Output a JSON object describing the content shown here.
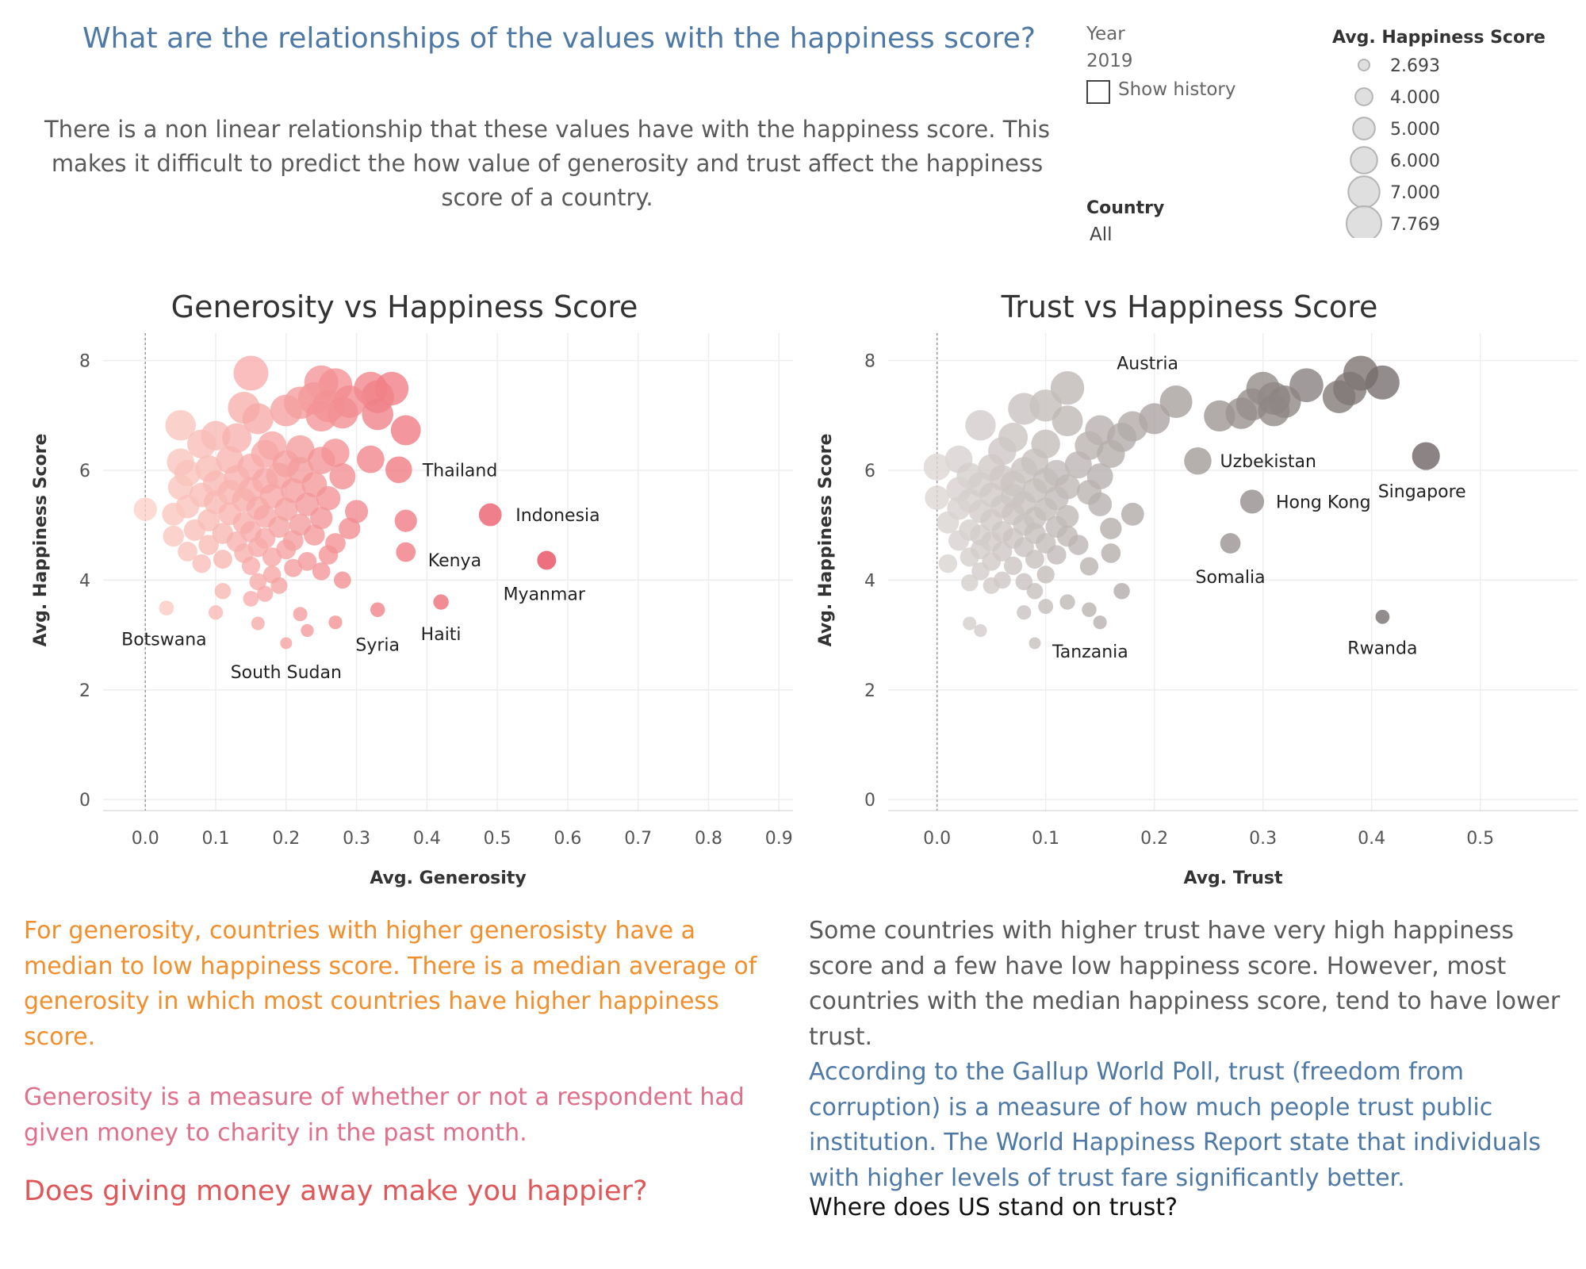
{
  "header": {
    "title": "What are the relationships of the values with the happiness score?",
    "subtitle": "There is a non linear relationship that these values have with the happiness score. This makes it difficult to predict the how value of generosity and trust affect the happiness score of a country."
  },
  "controls": {
    "year_label": "Year",
    "year_value": "2019",
    "show_history_label": "Show history",
    "show_history_checked": false,
    "country_label": "Country",
    "country_value": "All"
  },
  "size_legend": {
    "title": "Avg. Happiness Score",
    "items": [
      "2.693",
      "4.000",
      "5.000",
      "6.000",
      "7.000",
      "7.769"
    ]
  },
  "chart_data": [
    {
      "type": "scatter",
      "title": "Generosity vs Happiness Score",
      "xlabel": "Avg. Generosity",
      "ylabel": "Avg. Happiness Score",
      "xlim": [
        -0.06,
        0.92
      ],
      "ylim": [
        -0.2,
        8.5
      ],
      "xticks": [
        "0.0",
        "0.1",
        "0.2",
        "0.3",
        "0.4",
        "0.5",
        "0.6",
        "0.7",
        "0.8",
        "0.9"
      ],
      "yticks": [
        "0",
        "2",
        "4",
        "6",
        "8"
      ],
      "color_low": "#fcd0c6",
      "color_high": "#e8485b",
      "labeled_points": [
        {
          "label": "Thailand",
          "x": 0.36,
          "y": 6.01
        },
        {
          "label": "Indonesia",
          "x": 0.49,
          "y": 5.19
        },
        {
          "label": "Kenya",
          "x": 0.37,
          "y": 4.51
        },
        {
          "label": "Myanmar",
          "x": 0.57,
          "y": 4.36
        },
        {
          "label": "Haiti",
          "x": 0.42,
          "y": 3.6
        },
        {
          "label": "Syria",
          "x": 0.33,
          "y": 3.46
        },
        {
          "label": "Botswana",
          "x": 0.03,
          "y": 3.49
        },
        {
          "label": "South Sudan",
          "x": 0.2,
          "y": 2.85
        }
      ],
      "points": [
        [
          0.0,
          5.29
        ],
        [
          0.15,
          7.77
        ],
        [
          0.25,
          7.6
        ],
        [
          0.27,
          7.55
        ],
        [
          0.32,
          7.49
        ],
        [
          0.35,
          7.49
        ],
        [
          0.33,
          7.34
        ],
        [
          0.24,
          7.31
        ],
        [
          0.22,
          7.23
        ],
        [
          0.29,
          7.25
        ],
        [
          0.26,
          7.17
        ],
        [
          0.14,
          7.14
        ],
        [
          0.2,
          7.09
        ],
        [
          0.28,
          7.05
        ],
        [
          0.25,
          6.99
        ],
        [
          0.16,
          6.94
        ],
        [
          0.33,
          7.02
        ],
        [
          0.37,
          6.73
        ],
        [
          0.05,
          6.82
        ],
        [
          0.1,
          6.63
        ],
        [
          0.13,
          6.59
        ],
        [
          0.08,
          6.48
        ],
        [
          0.18,
          6.45
        ],
        [
          0.22,
          6.38
        ],
        [
          0.27,
          6.32
        ],
        [
          0.17,
          6.3
        ],
        [
          0.05,
          6.15
        ],
        [
          0.12,
          6.19
        ],
        [
          0.25,
          6.18
        ],
        [
          0.2,
          6.12
        ],
        [
          0.32,
          6.2
        ],
        [
          0.15,
          6.06
        ],
        [
          0.09,
          6.03
        ],
        [
          0.22,
          6.0
        ],
        [
          0.06,
          5.95
        ],
        [
          0.19,
          5.9
        ],
        [
          0.13,
          5.86
        ],
        [
          0.28,
          5.89
        ],
        [
          0.17,
          5.81
        ],
        [
          0.1,
          5.76
        ],
        [
          0.24,
          5.74
        ],
        [
          0.05,
          5.69
        ],
        [
          0.15,
          5.65
        ],
        [
          0.21,
          5.63
        ],
        [
          0.12,
          5.6
        ],
        [
          0.08,
          5.55
        ],
        [
          0.18,
          5.53
        ],
        [
          0.26,
          5.49
        ],
        [
          0.14,
          5.46
        ],
        [
          0.1,
          5.42
        ],
        [
          0.23,
          5.38
        ],
        [
          0.06,
          5.34
        ],
        [
          0.16,
          5.31
        ],
        [
          0.2,
          5.29
        ],
        [
          0.3,
          5.25
        ],
        [
          0.12,
          5.21
        ],
        [
          0.04,
          5.2
        ],
        [
          0.17,
          5.16
        ],
        [
          0.25,
          5.13
        ],
        [
          0.09,
          5.09
        ],
        [
          0.37,
          5.08
        ],
        [
          0.14,
          5.04
        ],
        [
          0.22,
          5.01
        ],
        [
          0.19,
          4.97
        ],
        [
          0.29,
          4.94
        ],
        [
          0.07,
          4.91
        ],
        [
          0.15,
          4.88
        ],
        [
          0.11,
          4.85
        ],
        [
          0.24,
          4.82
        ],
        [
          0.04,
          4.8
        ],
        [
          0.17,
          4.76
        ],
        [
          0.21,
          4.72
        ],
        [
          0.13,
          4.7
        ],
        [
          0.27,
          4.67
        ],
        [
          0.09,
          4.64
        ],
        [
          0.16,
          4.6
        ],
        [
          0.2,
          4.56
        ],
        [
          0.06,
          4.52
        ],
        [
          0.14,
          4.49
        ],
        [
          0.26,
          4.46
        ],
        [
          0.18,
          4.42
        ],
        [
          0.11,
          4.38
        ],
        [
          0.23,
          4.34
        ],
        [
          0.08,
          4.3
        ],
        [
          0.15,
          4.26
        ],
        [
          0.21,
          4.22
        ],
        [
          0.25,
          4.16
        ],
        [
          0.18,
          4.1
        ],
        [
          0.28,
          4.0
        ],
        [
          0.16,
          3.97
        ],
        [
          0.19,
          3.9
        ],
        [
          0.11,
          3.8
        ],
        [
          0.17,
          3.75
        ],
        [
          0.15,
          3.66
        ],
        [
          0.22,
          3.38
        ],
        [
          0.1,
          3.41
        ],
        [
          0.16,
          3.21
        ],
        [
          0.27,
          3.23
        ],
        [
          0.23,
          3.08
        ],
        [
          0.2,
          2.85
        ],
        [
          0.49,
          5.19
        ],
        [
          0.36,
          6.01
        ],
        [
          0.37,
          4.51
        ],
        [
          0.57,
          4.36
        ],
        [
          0.42,
          3.6
        ],
        [
          0.33,
          3.46
        ],
        [
          0.03,
          3.49
        ]
      ]
    },
    {
      "type": "scatter",
      "title": "Trust vs Happiness Score",
      "xlabel": "Avg. Trust",
      "ylabel": "Avg. Happiness Score",
      "xlim": [
        -0.045,
        0.59
      ],
      "ylim": [
        -0.2,
        8.5
      ],
      "xticks": [
        "0.0",
        "0.1",
        "0.2",
        "0.3",
        "0.4",
        "0.5"
      ],
      "yticks": [
        "0",
        "2",
        "4",
        "6",
        "8"
      ],
      "color_low": "#dcd6d4",
      "color_high": "#6b6261",
      "labeled_points": [
        {
          "label": "Austria",
          "x": 0.22,
          "y": 7.25
        },
        {
          "label": "Uzbekistan",
          "x": 0.24,
          "y": 6.17
        },
        {
          "label": "Singapore",
          "x": 0.45,
          "y": 6.26
        },
        {
          "label": "Hong Kong",
          "x": 0.29,
          "y": 5.43
        },
        {
          "label": "Somalia",
          "x": 0.27,
          "y": 4.67
        },
        {
          "label": "Rwanda",
          "x": 0.41,
          "y": 3.33
        },
        {
          "label": "Tanzania",
          "x": 0.09,
          "y": 2.85
        }
      ],
      "points": [
        [
          0.39,
          7.77
        ],
        [
          0.41,
          7.6
        ],
        [
          0.34,
          7.55
        ],
        [
          0.38,
          7.49
        ],
        [
          0.3,
          7.49
        ],
        [
          0.37,
          7.34
        ],
        [
          0.31,
          7.31
        ],
        [
          0.32,
          7.25
        ],
        [
          0.29,
          7.2
        ],
        [
          0.31,
          7.09
        ],
        [
          0.28,
          7.04
        ],
        [
          0.26,
          6.99
        ],
        [
          0.22,
          7.25
        ],
        [
          0.2,
          6.94
        ],
        [
          0.18,
          6.8
        ],
        [
          0.12,
          7.5
        ],
        [
          0.1,
          7.18
        ],
        [
          0.08,
          7.12
        ],
        [
          0.15,
          6.73
        ],
        [
          0.04,
          6.82
        ],
        [
          0.12,
          6.9
        ],
        [
          0.17,
          6.6
        ],
        [
          0.14,
          6.45
        ],
        [
          0.07,
          6.6
        ],
        [
          0.1,
          6.48
        ],
        [
          0.06,
          6.35
        ],
        [
          0.16,
          6.3
        ],
        [
          0.02,
          6.2
        ],
        [
          0.09,
          6.15
        ],
        [
          0.13,
          6.1
        ],
        [
          0.05,
          6.05
        ],
        [
          0.0,
          6.06
        ],
        [
          0.08,
          6.0
        ],
        [
          0.11,
          5.95
        ],
        [
          0.03,
          5.9
        ],
        [
          0.06,
          5.86
        ],
        [
          0.15,
          5.89
        ],
        [
          0.1,
          5.81
        ],
        [
          0.07,
          5.76
        ],
        [
          0.04,
          5.74
        ],
        [
          0.12,
          5.7
        ],
        [
          0.02,
          5.65
        ],
        [
          0.09,
          5.63
        ],
        [
          0.14,
          5.6
        ],
        [
          0.05,
          5.55
        ],
        [
          0.0,
          5.5
        ],
        [
          0.07,
          5.53
        ],
        [
          0.11,
          5.49
        ],
        [
          0.03,
          5.45
        ],
        [
          0.08,
          5.4
        ],
        [
          0.15,
          5.38
        ],
        [
          0.06,
          5.34
        ],
        [
          0.02,
          5.31
        ],
        [
          0.1,
          5.29
        ],
        [
          0.04,
          5.25
        ],
        [
          0.18,
          5.2
        ],
        [
          0.07,
          5.21
        ],
        [
          0.12,
          5.16
        ],
        [
          0.09,
          5.13
        ],
        [
          0.05,
          5.09
        ],
        [
          0.01,
          5.05
        ],
        [
          0.08,
          5.01
        ],
        [
          0.11,
          4.97
        ],
        [
          0.16,
          4.94
        ],
        [
          0.03,
          4.91
        ],
        [
          0.06,
          4.88
        ],
        [
          0.09,
          4.85
        ],
        [
          0.04,
          4.82
        ],
        [
          0.12,
          4.8
        ],
        [
          0.07,
          4.76
        ],
        [
          0.02,
          4.72
        ],
        [
          0.05,
          4.7
        ],
        [
          0.1,
          4.67
        ],
        [
          0.13,
          4.64
        ],
        [
          0.08,
          4.6
        ],
        [
          0.04,
          4.56
        ],
        [
          0.06,
          4.52
        ],
        [
          0.16,
          4.49
        ],
        [
          0.11,
          4.46
        ],
        [
          0.03,
          4.42
        ],
        [
          0.09,
          4.38
        ],
        [
          0.05,
          4.34
        ],
        [
          0.01,
          4.3
        ],
        [
          0.07,
          4.26
        ],
        [
          0.14,
          4.25
        ],
        [
          0.04,
          4.16
        ],
        [
          0.1,
          4.1
        ],
        [
          0.06,
          4.0
        ],
        [
          0.03,
          3.95
        ],
        [
          0.08,
          3.97
        ],
        [
          0.05,
          3.9
        ],
        [
          0.09,
          3.8
        ],
        [
          0.12,
          3.6
        ],
        [
          0.08,
          3.41
        ],
        [
          0.14,
          3.46
        ],
        [
          0.03,
          3.21
        ],
        [
          0.15,
          3.23
        ],
        [
          0.04,
          3.08
        ],
        [
          0.17,
          3.8
        ],
        [
          0.1,
          3.52
        ],
        [
          0.24,
          6.17
        ],
        [
          0.45,
          6.26
        ],
        [
          0.29,
          5.43
        ],
        [
          0.27,
          4.67
        ],
        [
          0.41,
          3.33
        ],
        [
          0.09,
          2.85
        ]
      ]
    }
  ],
  "text": {
    "gen_p1": "For generosity, countries with higher generosisty have a median to low happiness score. There is a median average of generosity  in which most countries have higher happiness score.",
    "gen_p2": "Generosity is a measure of whether or not a respondent had given money to charity in the past month.",
    "gen_q": "Does giving money away make you happier?",
    "trust_p1": "Some countries with higher trust have very high happiness score and a few have low happiness score. However, most countries with the median happiness score, tend to have lower trust.",
    "trust_p2": "According to the Gallup World Poll, trust (freedom from corruption) is a measure of how much people trust public institution. The World Happiness Report state that individuals with higher levels of trust fare significantly better.",
    "trust_q": "Where does US stand on trust?"
  }
}
